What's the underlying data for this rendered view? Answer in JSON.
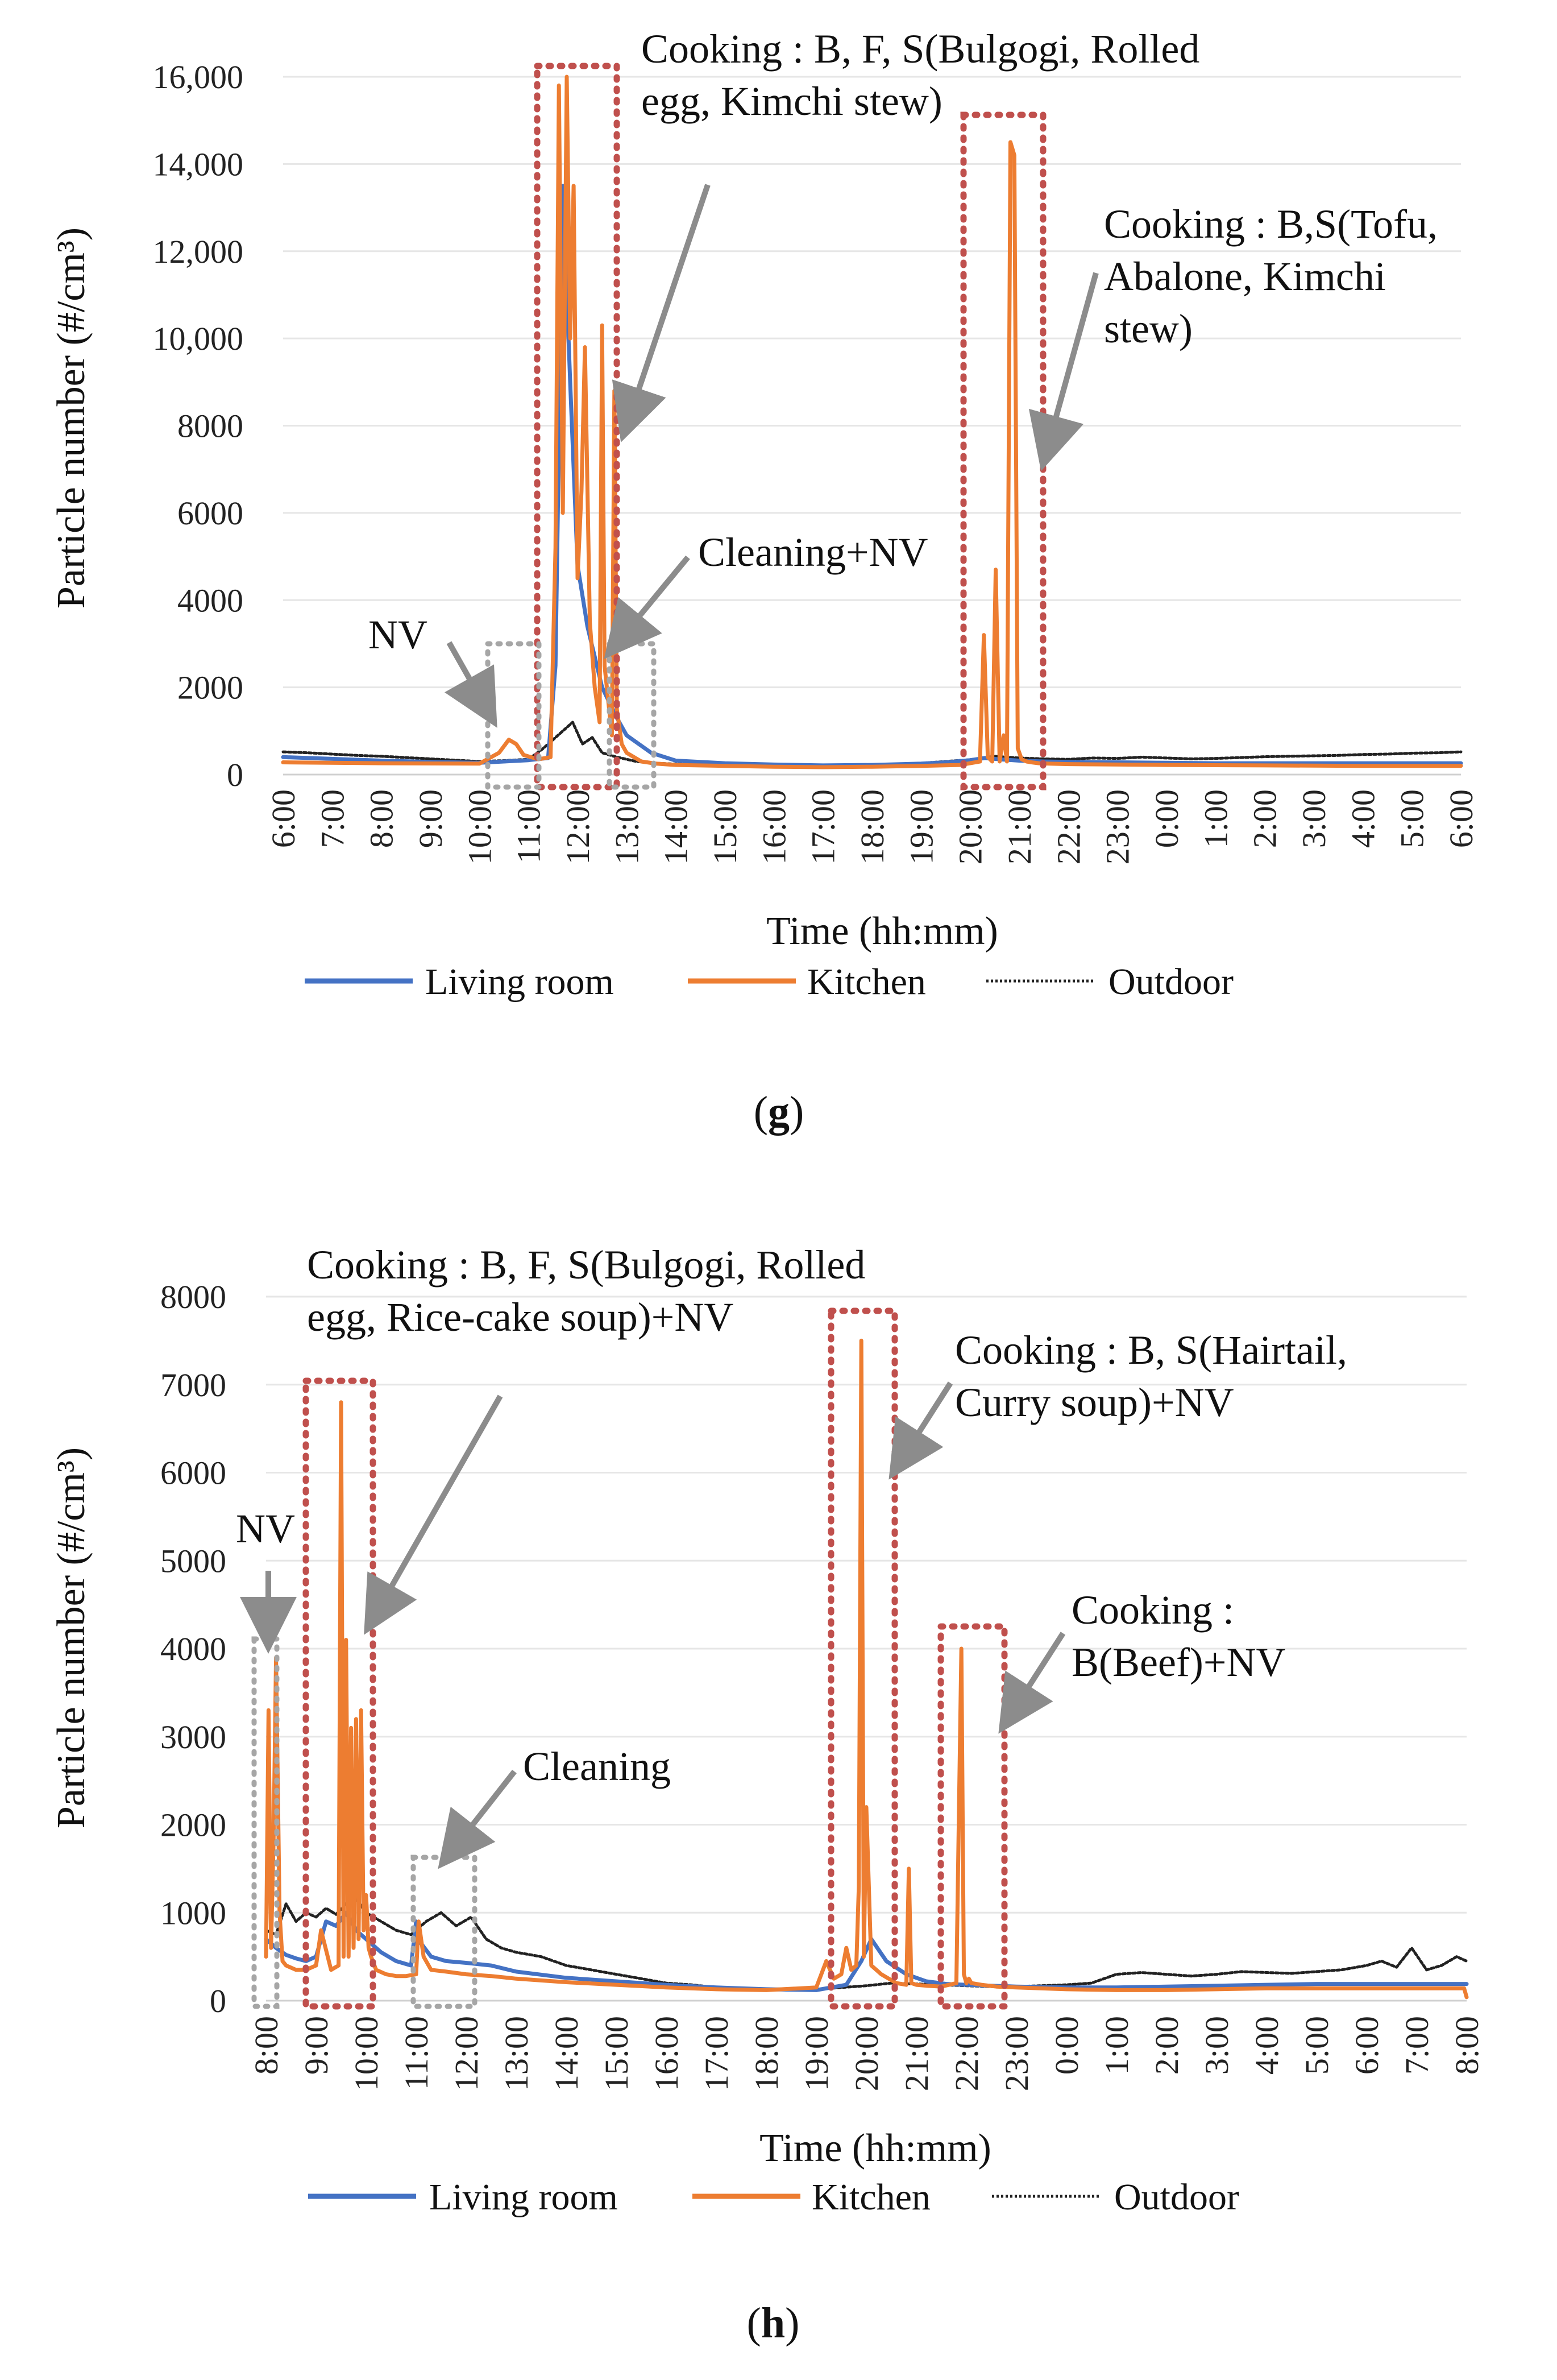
{
  "colors": {
    "living": "#4472C4",
    "kitchen": "#ED7D31",
    "outdoor": "#222222",
    "event_box": "#C0504D",
    "nv_box": "#A6A6A6",
    "arrow": "#8C8C8C",
    "grid": "#E6E6E6"
  },
  "chart_data": [
    {
      "panel": "(g)",
      "panel_letter": "g",
      "type": "line",
      "xlabel": "Time (hh:mm)",
      "ylabel": "Particle number (#/cm³)",
      "ylim": [
        0,
        16000
      ],
      "yticks": [
        0,
        2000,
        4000,
        6000,
        8000,
        10000,
        12000,
        14000,
        16000
      ],
      "ytick_labels": [
        "0",
        "2000",
        "4000",
        "6000",
        "8000",
        "10,000",
        "12,000",
        "14,000",
        "16,000"
      ],
      "xlim": [
        6,
        30
      ],
      "xticks": [
        "6:00",
        "7:00",
        "8:00",
        "9:00",
        "10:00",
        "11:00",
        "12:00",
        "13:00",
        "14:00",
        "15:00",
        "16:00",
        "17:00",
        "18:00",
        "19:00",
        "20:00",
        "21:00",
        "22:00",
        "23:00",
        "0:00",
        "1:00",
        "2:00",
        "3:00",
        "4:00",
        "5:00",
        "6:00"
      ],
      "grid": true,
      "legend": "bottom",
      "series": [
        {
          "name": "Living room",
          "key": "living",
          "x": [
            6,
            7,
            8,
            9,
            10,
            10.5,
            11,
            11.4,
            11.55,
            11.7,
            11.85,
            12.0,
            12.2,
            12.5,
            12.8,
            13.0,
            13.5,
            14,
            15,
            16,
            17,
            18,
            19,
            19.5,
            20,
            20.3,
            20.6,
            21,
            21.5,
            22,
            23,
            24,
            25,
            26,
            27,
            28,
            29,
            30
          ],
          "y": [
            400,
            360,
            320,
            290,
            270,
            300,
            330,
            380,
            2500,
            13500,
            9000,
            4800,
            3400,
            2000,
            1300,
            900,
            500,
            320,
            260,
            230,
            210,
            220,
            250,
            280,
            330,
            380,
            350,
            320,
            300,
            290,
            280,
            270,
            260,
            260,
            260,
            260,
            260,
            260
          ]
        },
        {
          "name": "Kitchen",
          "key": "kitchen",
          "x": [
            6,
            8,
            10,
            10.4,
            10.6,
            10.75,
            10.9,
            11.2,
            11.45,
            11.55,
            11.62,
            11.7,
            11.78,
            11.85,
            11.92,
            12.0,
            12.08,
            12.15,
            12.25,
            12.35,
            12.45,
            12.5,
            12.55,
            12.7,
            12.75,
            12.8,
            12.9,
            13.0,
            13.3,
            13.6,
            14,
            15,
            16,
            17,
            18,
            19,
            19.8,
            20.2,
            20.28,
            20.36,
            20.45,
            20.52,
            20.6,
            20.68,
            20.75,
            20.82,
            20.9,
            20.97,
            21.05,
            21.15,
            21.25,
            21.4,
            21.6,
            22,
            24,
            26,
            28,
            30
          ],
          "y": [
            280,
            260,
            250,
            500,
            800,
            700,
            450,
            350,
            400,
            5200,
            15800,
            6000,
            16000,
            10000,
            13500,
            4500,
            6500,
            9800,
            3500,
            2000,
            1200,
            10300,
            2500,
            900,
            8800,
            1500,
            700,
            500,
            300,
            250,
            220,
            200,
            180,
            170,
            180,
            200,
            220,
            300,
            3200,
            400,
            300,
            4700,
            300,
            900,
            300,
            14500,
            14200,
            600,
            350,
            300,
            280,
            260,
            250,
            240,
            220,
            210,
            200,
            200
          ]
        },
        {
          "name": "Outdoor",
          "key": "outdoor",
          "x": [
            6,
            6.5,
            7,
            7.5,
            8,
            8.5,
            9,
            9.5,
            10,
            10.5,
            11,
            11.3,
            11.6,
            11.9,
            12.1,
            12.3,
            12.5,
            12.8,
            13.2,
            13.6,
            14,
            14.5,
            15,
            15.5,
            16,
            16.5,
            17,
            17.5,
            18,
            18.5,
            19,
            19.5,
            20,
            20.5,
            21,
            21.5,
            22,
            22.5,
            23,
            23.5,
            24,
            24.5,
            25,
            25.5,
            26,
            26.5,
            27,
            27.5,
            28,
            28.5,
            29,
            29.5,
            30
          ],
          "y": [
            520,
            500,
            470,
            440,
            420,
            390,
            360,
            330,
            300,
            320,
            350,
            600,
            900,
            1200,
            700,
            850,
            500,
            400,
            300,
            260,
            240,
            220,
            200,
            190,
            170,
            180,
            160,
            170,
            180,
            200,
            260,
            300,
            340,
            420,
            380,
            360,
            350,
            380,
            370,
            400,
            380,
            360,
            370,
            390,
            410,
            420,
            430,
            440,
            460,
            470,
            490,
            500,
            520
          ]
        }
      ],
      "annotations": [
        {
          "lines": [
            "Cooking : B, F, S(Bulgogi, Rolled",
            "egg, Kimchi stew)"
          ],
          "box": "event"
        },
        {
          "lines": [
            "Cooking : B,S(Tofu,",
            "Abalone, Kimchi",
            "stew)"
          ],
          "box": "event"
        },
        {
          "lines": [
            "Cleaning+NV"
          ],
          "box": "nv"
        },
        {
          "lines": [
            "NV"
          ],
          "box": "nv"
        }
      ]
    },
    {
      "panel": "(h)",
      "panel_letter": "h",
      "type": "line",
      "xlabel": "Time (hh:mm)",
      "ylabel": "Particle number (#/cm³)",
      "ylim": [
        0,
        8000
      ],
      "yticks": [
        0,
        1000,
        2000,
        3000,
        4000,
        5000,
        6000,
        7000,
        8000
      ],
      "ytick_labels": [
        "0",
        "1000",
        "2000",
        "3000",
        "4000",
        "5000",
        "6000",
        "7000",
        "8000"
      ],
      "xlim": [
        8,
        32
      ],
      "xticks": [
        "8:00",
        "9:00",
        "10:00",
        "11:00",
        "12:00",
        "13:00",
        "14:00",
        "15:00",
        "16:00",
        "17:00",
        "18:00",
        "19:00",
        "20:00",
        "21:00",
        "22:00",
        "23:00",
        "0:00",
        "1:00",
        "2:00",
        "3:00",
        "4:00",
        "5:00",
        "6:00",
        "7:00",
        "8:00"
      ],
      "grid": true,
      "legend": "bottom",
      "series": [
        {
          "name": "Living room",
          "key": "living",
          "x": [
            8,
            8.2,
            8.4,
            8.6,
            8.8,
            9.0,
            9.2,
            9.4,
            9.6,
            9.8,
            10.0,
            10.3,
            10.6,
            10.9,
            11.0,
            11.1,
            11.3,
            11.6,
            12.0,
            12.5,
            13,
            14,
            15,
            16,
            17,
            18,
            19,
            19.6,
            19.9,
            20.1,
            20.4,
            20.8,
            21.2,
            21.6,
            22,
            22.5,
            23,
            24,
            25,
            26,
            27,
            28,
            29,
            30,
            31,
            32
          ],
          "y": [
            700,
            600,
            520,
            480,
            450,
            500,
            900,
            850,
            1000,
            800,
            700,
            550,
            450,
            400,
            900,
            650,
            500,
            450,
            430,
            400,
            330,
            260,
            220,
            180,
            150,
            130,
            120,
            180,
            450,
            700,
            450,
            300,
            220,
            190,
            180,
            170,
            160,
            150,
            150,
            160,
            170,
            180,
            190,
            190,
            190,
            190
          ]
        },
        {
          "name": "Kitchen",
          "key": "kitchen",
          "x": [
            8,
            8.05,
            8.1,
            8.15,
            8.2,
            8.27,
            8.33,
            8.4,
            8.6,
            8.8,
            9.0,
            9.1,
            9.3,
            9.45,
            9.5,
            9.55,
            9.6,
            9.65,
            9.7,
            9.75,
            9.8,
            9.85,
            9.9,
            9.95,
            10.0,
            10.05,
            10.1,
            10.2,
            10.4,
            10.6,
            10.8,
            11.0,
            11.05,
            11.15,
            11.3,
            11.6,
            12,
            12.5,
            13,
            14,
            15,
            16,
            17,
            18,
            19,
            19.2,
            19.35,
            19.5,
            19.6,
            19.7,
            19.8,
            19.85,
            19.9,
            19.95,
            20.0,
            20.1,
            20.3,
            20.6,
            20.8,
            20.85,
            20.9,
            21.0,
            21.2,
            21.5,
            21.8,
            21.85,
            21.9,
            21.95,
            22.0,
            22.05,
            22.1,
            22.3,
            22.6,
            23,
            24,
            25,
            26,
            27,
            28,
            29,
            30,
            31,
            31.95,
            32
          ],
          "y": [
            500,
            3300,
            600,
            1800,
            3900,
            1000,
            450,
            400,
            350,
            350,
            400,
            800,
            350,
            400,
            6800,
            500,
            4100,
            500,
            3100,
            600,
            3200,
            700,
            3300,
            800,
            1200,
            600,
            500,
            350,
            300,
            280,
            280,
            300,
            900,
            500,
            350,
            330,
            300,
            280,
            250,
            210,
            180,
            150,
            130,
            120,
            150,
            450,
            250,
            300,
            600,
            350,
            400,
            1300,
            7500,
            500,
            2200,
            400,
            300,
            200,
            180,
            1500,
            200,
            180,
            170,
            160,
            200,
            2100,
            4000,
            300,
            200,
            250,
            200,
            180,
            160,
            150,
            130,
            120,
            120,
            130,
            140,
            140,
            140,
            140,
            140,
            40
          ]
        },
        {
          "name": "Outdoor",
          "key": "outdoor",
          "x": [
            8,
            8.2,
            8.4,
            8.6,
            8.8,
            9.0,
            9.2,
            9.4,
            9.6,
            9.8,
            10.0,
            10.3,
            10.6,
            10.9,
            11.2,
            11.5,
            11.8,
            12.1,
            12.4,
            12.7,
            13.0,
            13.5,
            14,
            14.5,
            15,
            15.5,
            16,
            16.5,
            17,
            17.5,
            18,
            18.5,
            19,
            19.5,
            20,
            20.5,
            21,
            21.5,
            22,
            22.5,
            23,
            23.5,
            24,
            24.5,
            25,
            25.5,
            26,
            26.5,
            27,
            27.5,
            28,
            28.5,
            29,
            29.5,
            30,
            30.3,
            30.6,
            30.9,
            31.2,
            31.5,
            31.8,
            32
          ],
          "y": [
            800,
            750,
            1100,
            900,
            1000,
            950,
            1050,
            980,
            1100,
            1150,
            1000,
            900,
            800,
            750,
            900,
            1000,
            850,
            950,
            700,
            600,
            550,
            500,
            400,
            350,
            300,
            250,
            200,
            180,
            150,
            140,
            130,
            120,
            130,
            150,
            170,
            200,
            190,
            180,
            170,
            160,
            160,
            170,
            180,
            200,
            300,
            320,
            300,
            280,
            300,
            330,
            320,
            310,
            330,
            350,
            400,
            450,
            380,
            600,
            350,
            400,
            500,
            450
          ]
        }
      ],
      "annotations": [
        {
          "lines": [
            "Cooking : B, F, S(Bulgogi, Rolled",
            "egg, Rice-cake soup)+NV"
          ],
          "box": "event"
        },
        {
          "lines": [
            "Cooking : B, S(Hairtail,",
            "Curry soup)+NV"
          ],
          "box": "event"
        },
        {
          "lines": [
            "Cooking :",
            "B(Beef)+NV"
          ],
          "box": "event"
        },
        {
          "lines": [
            "Cleaning"
          ],
          "box": "nv"
        },
        {
          "lines": [
            "NV"
          ],
          "box": "nv"
        }
      ]
    }
  ]
}
